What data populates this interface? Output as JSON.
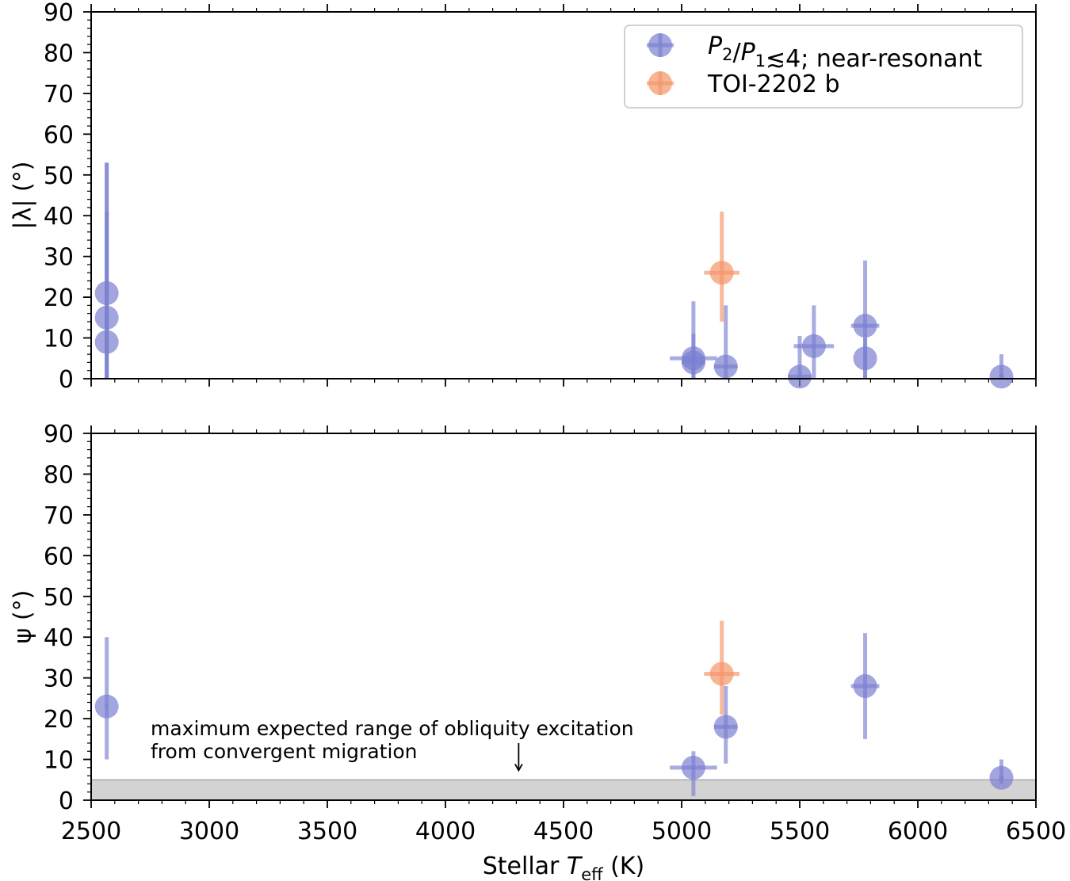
{
  "chart_data": [
    {
      "id": "top",
      "type": "scatter",
      "ylabel": "|λ| (°)",
      "xlim": [
        2500,
        6500
      ],
      "ylim": [
        0,
        90
      ],
      "x_ticks": [
        "2500",
        "3000",
        "3500",
        "4000",
        "4500",
        "5000",
        "5500",
        "6000",
        "6500"
      ],
      "y_ticks": [
        "0",
        "10",
        "20",
        "30",
        "40",
        "50",
        "60",
        "70",
        "80",
        "90"
      ],
      "legend": {
        "position": "top-right",
        "entries": [
          {
            "series": "near-resonant",
            "parts": [
              {
                "t": "P",
                "italic": true
              },
              {
                "t": "2",
                "sub": true
              },
              {
                "t": "/"
              },
              {
                "t": "P",
                "italic": true
              },
              {
                "t": "1",
                "sub": true
              },
              {
                "t": "≲4; near-resonant"
              }
            ]
          },
          {
            "series": "toi",
            "parts": [
              {
                "t": "TOI-2202 b"
              }
            ]
          }
        ]
      },
      "series": [
        {
          "name": "P2/P1≲4; near-resonant",
          "key": "near-resonant",
          "color": "#7b7fd0",
          "points": [
            {
              "x": 2566,
              "y": 21,
              "xerr": [
                5,
                5
              ],
              "yerr": [
                21,
                32
              ]
            },
            {
              "x": 2566,
              "y": 15,
              "xerr": [
                5,
                5
              ],
              "yerr": [
                15,
                26
              ]
            },
            {
              "x": 2566,
              "y": 9,
              "xerr": [
                5,
                5
              ],
              "yerr": [
                9,
                44
              ]
            },
            {
              "x": 5050,
              "y": 5,
              "xerr": [
                100,
                100
              ],
              "yerr": [
                5,
                6
              ]
            },
            {
              "x": 5050,
              "y": 4,
              "xerr": [
                50,
                50
              ],
              "yerr": [
                4,
                15
              ]
            },
            {
              "x": 5187,
              "y": 3,
              "xerr": [
                50,
                50
              ],
              "yerr": [
                3,
                15
              ]
            },
            {
              "x": 5500,
              "y": 0.5,
              "xerr": [
                50,
                50
              ],
              "yerr": [
                0.5,
                10
              ]
            },
            {
              "x": 5560,
              "y": 8,
              "xerr": [
                85,
                85
              ],
              "yerr": [
                8,
                10
              ]
            },
            {
              "x": 5777,
              "y": 13,
              "xerr": [
                60,
                60
              ],
              "yerr": [
                13,
                16
              ]
            },
            {
              "x": 5777,
              "y": 5,
              "xerr": [
                5,
                5
              ],
              "yerr": [
                5,
                5
              ]
            },
            {
              "x": 6354,
              "y": 0.5,
              "xerr": [
                10,
                10
              ],
              "yerr": [
                0.5,
                5.5
              ]
            }
          ]
        },
        {
          "name": "TOI-2202 b",
          "key": "toi",
          "color": "#f4956a",
          "points": [
            {
              "x": 5170,
              "y": 26,
              "xerr": [
                75,
                75
              ],
              "yerr": [
                12,
                15
              ]
            }
          ]
        }
      ]
    },
    {
      "id": "bottom",
      "type": "scatter",
      "xlabel": {
        "pre": "Stellar ",
        "var": "T",
        "sub": "eff",
        "post": " (K)"
      },
      "ylabel": "ψ (°)",
      "xlim": [
        2500,
        6500
      ],
      "ylim": [
        0,
        90
      ],
      "x_ticks": [
        "2500",
        "3000",
        "3500",
        "4000",
        "4500",
        "5000",
        "5500",
        "6000",
        "6500"
      ],
      "y_ticks": [
        "0",
        "10",
        "20",
        "30",
        "40",
        "50",
        "60",
        "70",
        "80",
        "90"
      ],
      "band": {
        "y0": 0,
        "y1": 5,
        "color": "#d3d3d3"
      },
      "annotation": {
        "line1": "maximum expected range of obliquity excitation",
        "line2": " from convergent migration",
        "arrow_x": 4310,
        "arrow_y_from": 14,
        "arrow_y_to": 7.3
      },
      "series": [
        {
          "name": "P2/P1≲4; near-resonant",
          "key": "near-resonant",
          "color": "#7b7fd0",
          "points": [
            {
              "x": 2566,
              "y": 23,
              "xerr": [
                5,
                5
              ],
              "yerr": [
                13,
                17
              ]
            },
            {
              "x": 5050,
              "y": 8,
              "xerr": [
                100,
                100
              ],
              "yerr": [
                7,
                4
              ]
            },
            {
              "x": 5187,
              "y": 18,
              "xerr": [
                50,
                50
              ],
              "yerr": [
                9,
                10
              ]
            },
            {
              "x": 5777,
              "y": 28,
              "xerr": [
                60,
                60
              ],
              "yerr": [
                13,
                13
              ]
            },
            {
              "x": 6354,
              "y": 5.5,
              "xerr": [
                10,
                10
              ],
              "yerr": [
                1.5,
                4.5
              ]
            }
          ]
        },
        {
          "name": "TOI-2202 b",
          "key": "toi",
          "color": "#f4956a",
          "points": [
            {
              "x": 5170,
              "y": 31,
              "xerr": [
                75,
                75
              ],
              "yerr": [
                10,
                13
              ]
            }
          ]
        }
      ]
    }
  ]
}
